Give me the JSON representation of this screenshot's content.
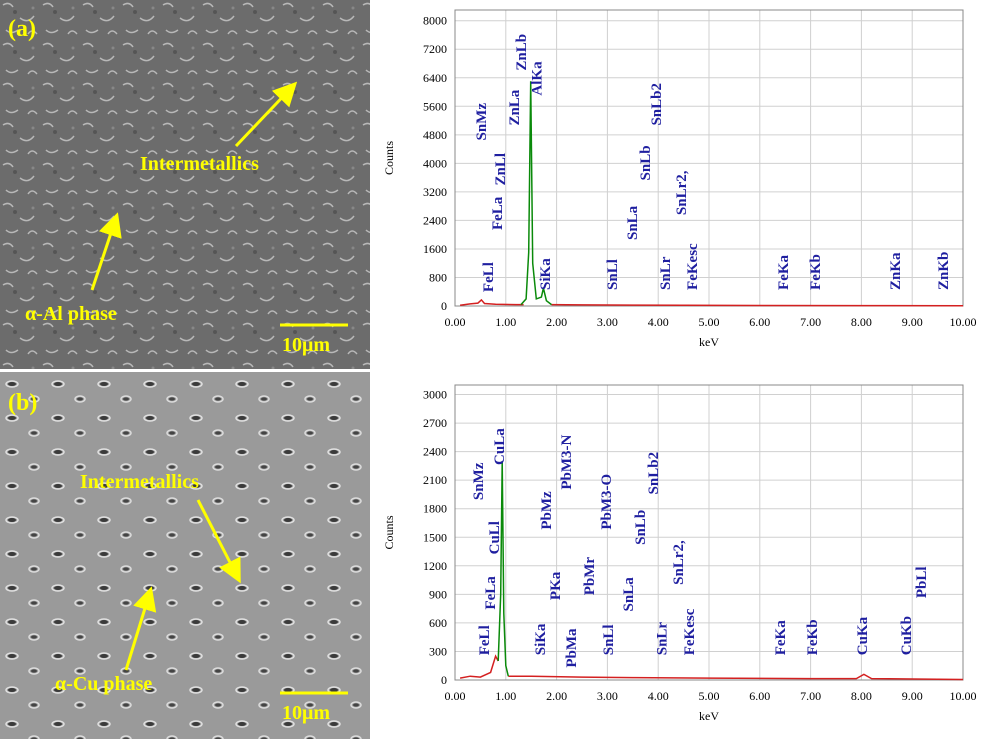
{
  "panels": [
    {
      "label": "(a)",
      "annotations": [
        "Intermetallics",
        "α-Al phase"
      ],
      "scale_bar": "10μm"
    },
    {
      "label": "(b)",
      "annotations": [
        "Intermetallics",
        "α-Cu phase"
      ],
      "scale_bar": "10μm"
    }
  ],
  "chart_data": [
    {
      "type": "line",
      "x_label": "keV",
      "y_label": "Counts",
      "grid": true,
      "xlim": [
        0,
        10
      ],
      "ylim": [
        0,
        8300
      ],
      "xticks": [
        {
          "value": 0,
          "label": "0.00"
        },
        {
          "value": 1,
          "label": "1.00"
        },
        {
          "value": 2,
          "label": "2.00"
        },
        {
          "value": 3,
          "label": "3.00"
        },
        {
          "value": 4,
          "label": "4.00"
        },
        {
          "value": 5,
          "label": "5.00"
        },
        {
          "value": 6,
          "label": "6.00"
        },
        {
          "value": 7,
          "label": "7.00"
        },
        {
          "value": 8,
          "label": "8.00"
        },
        {
          "value": 9,
          "label": "9.00"
        },
        {
          "value": 10,
          "label": "10.00"
        }
      ],
      "yticks": [
        0,
        800,
        1600,
        2400,
        3200,
        4000,
        4800,
        5600,
        6400,
        7200,
        8000
      ],
      "series": [
        {
          "color": "#d42020",
          "x": [
            0.1,
            0.3,
            0.45,
            0.52,
            0.58,
            0.8,
            1.2,
            1.35,
            1.6,
            1.9,
            2.5,
            3.5,
            4.5,
            6,
            8,
            10
          ],
          "values": [
            20,
            60,
            80,
            170,
            70,
            50,
            40,
            40,
            null,
            40,
            30,
            25,
            20,
            15,
            10,
            5
          ]
        },
        {
          "color": "#0a8a0a",
          "x": [
            1.3,
            1.4,
            1.45,
            1.49,
            1.53,
            1.6,
            1.7,
            1.74,
            1.8,
            1.9
          ],
          "values": [
            40,
            200,
            1500,
            6300,
            1200,
            200,
            250,
            500,
            150,
            40
          ]
        }
      ],
      "peak_labels": [
        {
          "text": "FeLl",
          "x": 0.65,
          "y": 390
        },
        {
          "text": "FeLa",
          "x": 0.83,
          "y": 2130
        },
        {
          "text": "ZnLl",
          "x": 0.89,
          "y": 3380
        },
        {
          "text": "SnMz",
          "x": 0.51,
          "y": 4640
        },
        {
          "text": "ZnLa",
          "x": 1.16,
          "y": 5060
        },
        {
          "text": "ZnLb",
          "x": 1.3,
          "y": 6600
        },
        {
          "text": "AlKa",
          "x": 1.6,
          "y": 5900
        },
        {
          "text": "SiKa",
          "x": 1.77,
          "y": 450
        },
        {
          "text": "SnLl",
          "x": 3.09,
          "y": 450
        },
        {
          "text": "SnLa",
          "x": 3.48,
          "y": 1850
        },
        {
          "text": "SnLb",
          "x": 3.74,
          "y": 3520
        },
        {
          "text": "SnLb2",
          "x": 3.96,
          "y": 5060
        },
        {
          "text": "SnLr",
          "x": 4.13,
          "y": 450
        },
        {
          "text": "SnLr2,",
          "x": 4.45,
          "y": 2550
        },
        {
          "text": "FeKesc",
          "x": 4.67,
          "y": 450
        },
        {
          "text": "FeKa",
          "x": 6.46,
          "y": 450
        },
        {
          "text": "FeKb",
          "x": 7.09,
          "y": 450
        },
        {
          "text": "ZnKa",
          "x": 8.66,
          "y": 450
        },
        {
          "text": "ZnKb",
          "x": 9.61,
          "y": 450
        }
      ]
    },
    {
      "type": "line",
      "x_label": "keV",
      "y_label": "Counts",
      "grid": true,
      "xlim": [
        0,
        10
      ],
      "ylim": [
        0,
        3100
      ],
      "xticks": [
        {
          "value": 0,
          "label": "0.00"
        },
        {
          "value": 1,
          "label": "1.00"
        },
        {
          "value": 2,
          "label": "2.00"
        },
        {
          "value": 3,
          "label": "3.00"
        },
        {
          "value": 4,
          "label": "4.00"
        },
        {
          "value": 5,
          "label": "5.00"
        },
        {
          "value": 6,
          "label": "6.00"
        },
        {
          "value": 7,
          "label": "7.00"
        },
        {
          "value": 8,
          "label": "8.00"
        },
        {
          "value": 9,
          "label": "9.00"
        },
        {
          "value": 10,
          "label": "10.00"
        }
      ],
      "yticks": [
        0,
        300,
        600,
        900,
        1200,
        1500,
        1800,
        2100,
        2400,
        2700,
        3000
      ],
      "series": [
        {
          "color": "#d42020",
          "x": [
            0.1,
            0.3,
            0.5,
            0.7,
            0.8,
            0.85,
            0.93,
            1.05,
            1.5,
            2.5,
            3.5,
            5,
            7,
            7.9,
            8.05,
            8.2,
            9,
            10
          ],
          "values": [
            20,
            40,
            30,
            80,
            250,
            200,
            null,
            40,
            40,
            30,
            25,
            20,
            15,
            15,
            60,
            15,
            10,
            5
          ]
        },
        {
          "color": "#0a8a0a",
          "x": [
            0.85,
            0.9,
            0.93,
            0.96,
            1.0,
            1.05
          ],
          "values": [
            200,
            900,
            2300,
            700,
            150,
            40
          ]
        }
      ],
      "peak_labels": [
        {
          "text": "SnMz",
          "x": 0.45,
          "y": 1890
        },
        {
          "text": "FeLl",
          "x": 0.57,
          "y": 260
        },
        {
          "text": "FeLa",
          "x": 0.69,
          "y": 740
        },
        {
          "text": "CuLl",
          "x": 0.77,
          "y": 1320
        },
        {
          "text": "CuLa",
          "x": 0.87,
          "y": 2260
        },
        {
          "text": "SiKa",
          "x": 1.67,
          "y": 260
        },
        {
          "text": "PKa",
          "x": 1.97,
          "y": 840
        },
        {
          "text": "PbMa",
          "x": 2.28,
          "y": 130
        },
        {
          "text": "PbMz",
          "x": 1.79,
          "y": 1580
        },
        {
          "text": "PbM3-N",
          "x": 2.19,
          "y": 2000
        },
        {
          "text": "PbMr",
          "x": 2.64,
          "y": 890
        },
        {
          "text": "PbM3-O",
          "x": 2.97,
          "y": 1580
        },
        {
          "text": "SnLl",
          "x": 3.01,
          "y": 260
        },
        {
          "text": "SnLa",
          "x": 3.41,
          "y": 720
        },
        {
          "text": "SnLb",
          "x": 3.64,
          "y": 1420
        },
        {
          "text": "SnLb2",
          "x": 3.9,
          "y": 1950
        },
        {
          "text": "SnLr",
          "x": 4.07,
          "y": 260
        },
        {
          "text": "SnLr2,",
          "x": 4.39,
          "y": 1000
        },
        {
          "text": "FeKesc",
          "x": 4.61,
          "y": 260
        },
        {
          "text": "FeKa",
          "x": 6.4,
          "y": 260
        },
        {
          "text": "FeKb",
          "x": 7.03,
          "y": 260
        },
        {
          "text": "CuKa",
          "x": 8.01,
          "y": 260
        },
        {
          "text": "CuKb",
          "x": 8.88,
          "y": 260
        },
        {
          "text": "PbLl",
          "x": 9.17,
          "y": 860
        }
      ]
    }
  ]
}
